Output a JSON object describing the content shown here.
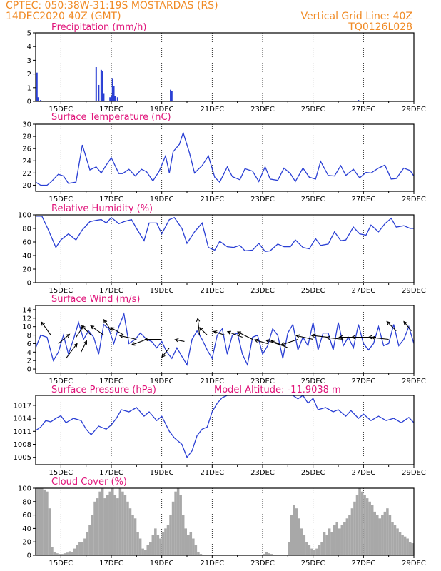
{
  "header": {
    "line1_left": "CPTEC:   050:38W-31:19S   MOSTARDAS (RS)",
    "line2_left": "14DEC2020 40Z (GMT)",
    "line1_right": "Vertical Grid Line: 40Z",
    "line2_right": "TQ0126L028"
  },
  "colors": {
    "header": "#f08a24",
    "panel_title": "#e0147a",
    "line": "#2a3fd4",
    "cloud_bar": "#a8a8a8",
    "axis": "#000000",
    "wind_arrow": "#000000"
  },
  "chart_data": [
    {
      "type": "bar",
      "title": "Precipitation (mm/h)",
      "x_ticks": [
        "15DEC",
        "17DEC",
        "19DEC",
        "21DEC",
        "23DEC",
        "25DEC",
        "27DEC",
        "29DEC"
      ],
      "xlim_days": [
        14.0,
        29.0
      ],
      "ylim": [
        0,
        5
      ],
      "y_ticks": [
        "0",
        "1",
        "2",
        "3",
        "4",
        "5"
      ],
      "x": [
        14.05,
        14.1,
        14.2,
        16.4,
        16.5,
        16.6,
        16.65,
        16.7,
        16.95,
        17.0,
        17.05,
        17.1,
        17.15,
        17.25,
        19.35,
        19.4,
        26.8,
        28.4
      ],
      "values": [
        2.1,
        0.3,
        0.1,
        2.5,
        1.2,
        2.3,
        2.2,
        0.6,
        0.3,
        0.4,
        1.7,
        1.1,
        0.4,
        0.3,
        0.85,
        0.75,
        0.1,
        0.05
      ]
    },
    {
      "type": "line",
      "title": "Surface Temperature (nC)",
      "x_ticks": [
        "15DEC",
        "17DEC",
        "19DEC",
        "21DEC",
        "23DEC",
        "25DEC",
        "27DEC",
        "29DEC"
      ],
      "xlim_days": [
        14.0,
        29.0
      ],
      "ylim": [
        19,
        30
      ],
      "y_ticks": [
        "20",
        "22",
        "24",
        "26",
        "28",
        "30"
      ],
      "x": [
        14.0,
        14.2,
        14.45,
        14.6,
        14.9,
        15.1,
        15.3,
        15.6,
        15.85,
        16.15,
        16.4,
        16.6,
        16.8,
        17.0,
        17.3,
        17.45,
        17.7,
        17.95,
        18.2,
        18.4,
        18.65,
        18.9,
        19.15,
        19.3,
        19.45,
        19.7,
        19.85,
        20.1,
        20.3,
        20.6,
        20.85,
        21.1,
        21.3,
        21.6,
        21.8,
        22.1,
        22.3,
        22.6,
        22.85,
        23.1,
        23.3,
        23.6,
        23.85,
        24.1,
        24.3,
        24.6,
        24.85,
        25.1,
        25.3,
        25.6,
        25.85,
        26.1,
        26.3,
        26.6,
        26.85,
        27.1,
        27.3,
        27.6,
        27.85,
        28.1,
        28.3,
        28.6,
        28.85,
        29.0
      ],
      "values": [
        20.5,
        20.0,
        20.0,
        20.5,
        21.8,
        21.5,
        20.3,
        20.5,
        26.6,
        22.5,
        23.0,
        22.0,
        23.3,
        24.5,
        21.9,
        21.9,
        22.6,
        21.5,
        22.6,
        22.2,
        20.7,
        22.3,
        24.8,
        22.0,
        25.5,
        26.7,
        28.6,
        25.3,
        22.0,
        23.2,
        24.8,
        21.3,
        20.5,
        23.0,
        21.4,
        20.9,
        22.7,
        22.3,
        20.6,
        23.0,
        21.0,
        20.8,
        22.8,
        21.9,
        20.6,
        22.8,
        21.3,
        21.0,
        23.9,
        21.6,
        21.5,
        23.2,
        21.6,
        22.6,
        21.2,
        22.1,
        22.0,
        22.8,
        23.3,
        21.0,
        21.1,
        22.8,
        22.4,
        21.5
      ]
    },
    {
      "type": "line",
      "title": "Relative Humidity (%)",
      "x_ticks": [
        "15DEC",
        "17DEC",
        "19DEC",
        "21DEC",
        "23DEC",
        "25DEC",
        "27DEC",
        "29DEC"
      ],
      "xlim_days": [
        14.0,
        29.0
      ],
      "ylim": [
        0,
        100
      ],
      "y_ticks": [
        "0",
        "20",
        "40",
        "60",
        "80",
        "100"
      ],
      "x": [
        14.0,
        14.25,
        14.5,
        14.8,
        15.0,
        15.3,
        15.6,
        15.85,
        16.15,
        16.4,
        16.6,
        16.8,
        17.0,
        17.3,
        17.5,
        17.8,
        18.0,
        18.3,
        18.5,
        18.8,
        19.0,
        19.3,
        19.5,
        19.8,
        20.0,
        20.3,
        20.6,
        20.85,
        21.1,
        21.3,
        21.6,
        21.85,
        22.1,
        22.3,
        22.6,
        22.85,
        23.1,
        23.3,
        23.6,
        23.85,
        24.1,
        24.3,
        24.6,
        24.85,
        25.1,
        25.3,
        25.6,
        25.85,
        26.1,
        26.3,
        26.6,
        26.85,
        27.1,
        27.3,
        27.6,
        27.85,
        28.1,
        28.3,
        28.6,
        28.85,
        29.0
      ],
      "values": [
        98,
        98,
        78,
        52,
        63,
        72,
        63,
        78,
        90,
        92,
        93,
        88,
        96,
        87,
        90,
        93,
        80,
        62,
        88,
        88,
        72,
        93,
        96,
        80,
        58,
        75,
        88,
        52,
        48,
        61,
        53,
        52,
        55,
        47,
        48,
        58,
        46,
        47,
        57,
        53,
        53,
        63,
        52,
        50,
        65,
        55,
        57,
        75,
        62,
        63,
        82,
        72,
        70,
        85,
        75,
        87,
        95,
        82,
        84,
        80,
        80
      ]
    },
    {
      "type": "line",
      "title": "Surface Wind (m/s)",
      "x_ticks": [
        "15DEC",
        "17DEC",
        "19DEC",
        "21DEC",
        "23DEC",
        "25DEC",
        "27DEC",
        "29DEC"
      ],
      "xlim_days": [
        14.0,
        29.0
      ],
      "ylim": [
        -1,
        15
      ],
      "y_ticks": [
        "0",
        "2",
        "4",
        "6",
        "8",
        "10",
        "12",
        "14"
      ],
      "x": [
        14.0,
        14.2,
        14.45,
        14.7,
        14.9,
        15.1,
        15.3,
        15.5,
        15.7,
        15.9,
        16.1,
        16.3,
        16.5,
        16.7,
        16.9,
        17.1,
        17.3,
        17.5,
        17.7,
        17.95,
        18.15,
        18.4,
        18.6,
        18.8,
        19.0,
        19.2,
        19.4,
        19.6,
        19.8,
        20.0,
        20.2,
        20.4,
        20.6,
        20.8,
        21.0,
        21.2,
        21.4,
        21.6,
        21.8,
        22.0,
        22.2,
        22.4,
        22.6,
        22.8,
        23.0,
        23.2,
        23.4,
        23.6,
        23.8,
        24.0,
        24.2,
        24.4,
        24.6,
        24.8,
        25.0,
        25.2,
        25.4,
        25.6,
        25.8,
        26.0,
        26.2,
        26.4,
        26.6,
        26.8,
        27.0,
        27.2,
        27.4,
        27.6,
        27.8,
        28.0,
        28.2,
        28.4,
        28.6,
        28.8,
        29.0
      ],
      "values": [
        5.0,
        8.0,
        7.5,
        2.0,
        4.0,
        8.0,
        3.5,
        7.0,
        11.0,
        7.0,
        9.0,
        7.5,
        3.5,
        10.5,
        9.5,
        6.0,
        10.0,
        13.0,
        6.0,
        7.0,
        8.5,
        7.0,
        6.5,
        5.0,
        6.5,
        4.0,
        2.5,
        5.0,
        3.0,
        1.0,
        7.0,
        9.0,
        7.0,
        4.5,
        2.5,
        8.0,
        9.5,
        3.5,
        8.0,
        8.5,
        3.5,
        1.0,
        7.5,
        8.0,
        3.5,
        5.5,
        9.5,
        8.0,
        2.5,
        8.5,
        10.5,
        4.5,
        7.5,
        5.5,
        11.0,
        4.5,
        8.5,
        8.5,
        4.5,
        11.0,
        5.5,
        7.5,
        5.0,
        10.5,
        6.0,
        4.5,
        6.0,
        10.0,
        5.5,
        6.0,
        10.5,
        5.5,
        7.0,
        10.0,
        6.0
      ],
      "wind_vectors": [
        {
          "x": 14.6,
          "y": 8.0,
          "u": -0.5,
          "v": 0.7
        },
        {
          "x": 14.9,
          "y": 6.0,
          "u": 0.6,
          "v": 0.5
        },
        {
          "x": 15.2,
          "y": 2.5,
          "u": 0.6,
          "v": 0.8
        },
        {
          "x": 15.6,
          "y": 7.5,
          "u": 0.4,
          "v": 0.6
        },
        {
          "x": 15.8,
          "y": 4.0,
          "u": 0.3,
          "v": 0.6
        },
        {
          "x": 16.2,
          "y": 8.0,
          "u": -0.5,
          "v": 0.5
        },
        {
          "x": 16.7,
          "y": 8.0,
          "u": -0.7,
          "v": 0.5
        },
        {
          "x": 17.0,
          "y": 9.0,
          "u": -0.4,
          "v": 0.6
        },
        {
          "x": 17.5,
          "y": 8.0,
          "u": -0.7,
          "v": 0.4
        },
        {
          "x": 18.0,
          "y": 7.0,
          "u": -0.9,
          "v": 0.2
        },
        {
          "x": 18.4,
          "y": 7.0,
          "u": -0.8,
          "v": -0.3
        },
        {
          "x": 19.0,
          "y": 7.0,
          "u": -0.9,
          "v": 0.0
        },
        {
          "x": 19.3,
          "y": 5.0,
          "u": -0.4,
          "v": -0.5
        },
        {
          "x": 19.9,
          "y": 6.5,
          "u": -0.5,
          "v": 0.1
        },
        {
          "x": 20.5,
          "y": 8.0,
          "u": -0.1,
          "v": 0.9
        },
        {
          "x": 20.8,
          "y": 8.0,
          "u": -0.4,
          "v": 0.4
        },
        {
          "x": 21.5,
          "y": 8.0,
          "u": -0.6,
          "v": 0.2
        },
        {
          "x": 22.2,
          "y": 7.5,
          "u": -0.8,
          "v": 0.3
        },
        {
          "x": 22.6,
          "y": 7.0,
          "u": -0.8,
          "v": 0.4
        },
        {
          "x": 23.2,
          "y": 6.0,
          "u": -0.7,
          "v": 0.2
        },
        {
          "x": 23.8,
          "y": 5.5,
          "u": -0.9,
          "v": 0.3
        },
        {
          "x": 24.0,
          "y": 5.0,
          "u": -0.9,
          "v": 0.4
        },
        {
          "x": 24.4,
          "y": 7.0,
          "u": -0.9,
          "v": -0.3
        },
        {
          "x": 25.0,
          "y": 7.0,
          "u": -0.9,
          "v": 0.2
        },
        {
          "x": 25.6,
          "y": 7.5,
          "u": -0.9,
          "v": 0.1
        },
        {
          "x": 26.2,
          "y": 7.0,
          "u": -0.9,
          "v": 0.1
        },
        {
          "x": 26.7,
          "y": 7.5,
          "u": -0.9,
          "v": 0.0
        },
        {
          "x": 27.2,
          "y": 7.5,
          "u": -0.9,
          "v": 0.0
        },
        {
          "x": 27.5,
          "y": 7.5,
          "u": -0.4,
          "v": 0.0
        },
        {
          "x": 28.0,
          "y": 7.0,
          "u": -0.9,
          "v": 0.1
        },
        {
          "x": 28.3,
          "y": 9.0,
          "u": -0.5,
          "v": 0.5
        },
        {
          "x": 28.9,
          "y": 9.0,
          "u": -0.4,
          "v": 0.5
        }
      ]
    },
    {
      "type": "line",
      "title": "Surface Pressure (hPa)",
      "annotation": "Model Altitude: -11.9038 m",
      "x_ticks": [
        "15DEC",
        "17DEC",
        "19DEC",
        "21DEC",
        "23DEC",
        "25DEC",
        "27DEC",
        "29DEC"
      ],
      "xlim_days": [
        14.0,
        29.0
      ],
      "ylim": [
        1003.3,
        1019.3
      ],
      "y_ticks": [
        "1005",
        "1008",
        "1011",
        "1014",
        "1017"
      ],
      "x": [
        14.0,
        14.2,
        14.4,
        14.6,
        14.8,
        15.0,
        15.2,
        15.5,
        15.8,
        16.0,
        16.2,
        16.5,
        16.8,
        17.0,
        17.2,
        17.4,
        17.7,
        18.0,
        18.3,
        18.5,
        18.8,
        19.0,
        19.3,
        19.5,
        19.8,
        20.0,
        20.2,
        20.4,
        20.6,
        20.8,
        21.0,
        21.2,
        21.4,
        21.6,
        21.8,
        22.0,
        24.2,
        24.4,
        24.6,
        24.8,
        25.0,
        25.2,
        25.5,
        25.8,
        26.0,
        26.3,
        26.5,
        26.8,
        27.0,
        27.3,
        27.6,
        27.9,
        28.2,
        28.5,
        28.8,
        29.0
      ],
      "values": [
        1011.2,
        1012.0,
        1013.5,
        1013.2,
        1014.0,
        1014.6,
        1013.0,
        1014.0,
        1013.5,
        1011.5,
        1010.2,
        1012.2,
        1011.5,
        1012.5,
        1014.0,
        1016.0,
        1015.5,
        1016.5,
        1014.5,
        1015.5,
        1013.5,
        1014.5,
        1011.0,
        1009.5,
        1008.0,
        1005.0,
        1006.5,
        1010.0,
        1011.5,
        1012.0,
        1015.5,
        1017.5,
        1018.8,
        1019.3,
        1019.3,
        1019.3,
        1019.3,
        1018.5,
        1019.3,
        1017.5,
        1018.6,
        1016.0,
        1016.5,
        1015.5,
        1016.0,
        1014.5,
        1015.8,
        1014.0,
        1015.0,
        1013.5,
        1014.5,
        1013.5,
        1014.0,
        1013.0,
        1014.2,
        1013.0
      ]
    },
    {
      "type": "bar",
      "title": "Cloud Cover (%)",
      "x_ticks": [
        "15DEC",
        "17DEC",
        "19DEC",
        "21DEC",
        "23DEC",
        "25DEC",
        "27DEC",
        "29DEC"
      ],
      "xlim_days": [
        14.0,
        29.0
      ],
      "ylim": [
        0,
        100
      ],
      "y_ticks": [
        "0",
        "20",
        "40",
        "60",
        "80",
        "100"
      ],
      "x": [
        14.0,
        14.1,
        14.2,
        14.3,
        14.4,
        14.5,
        14.6,
        14.7,
        14.8,
        14.9,
        15.0,
        15.1,
        15.2,
        15.3,
        15.4,
        15.5,
        15.6,
        15.7,
        15.8,
        15.9,
        16.0,
        16.1,
        16.2,
        16.3,
        16.4,
        16.5,
        16.6,
        16.7,
        16.8,
        16.9,
        17.0,
        17.1,
        17.2,
        17.3,
        17.4,
        17.5,
        17.6,
        17.7,
        17.8,
        17.9,
        18.0,
        18.1,
        18.2,
        18.3,
        18.4,
        18.5,
        18.6,
        18.7,
        18.8,
        18.9,
        19.0,
        19.1,
        19.2,
        19.3,
        19.4,
        19.5,
        19.6,
        19.7,
        19.8,
        19.9,
        20.0,
        20.1,
        20.2,
        20.3,
        20.4,
        20.5,
        20.6,
        20.7,
        20.8,
        20.9,
        21.0,
        21.1,
        21.2,
        21.3,
        21.4,
        21.5,
        21.6,
        21.7,
        21.8,
        21.9,
        22.0,
        22.1,
        22.2,
        22.3,
        22.4,
        22.5,
        22.6,
        22.7,
        22.8,
        22.9,
        23.0,
        23.1,
        23.2,
        23.3,
        23.4,
        23.5,
        23.6,
        23.7,
        23.8,
        23.9,
        24.0,
        24.1,
        24.2,
        24.3,
        24.4,
        24.5,
        24.6,
        24.7,
        24.8,
        24.9,
        25.0,
        25.1,
        25.2,
        25.3,
        25.4,
        25.5,
        25.6,
        25.7,
        25.8,
        25.9,
        26.0,
        26.1,
        26.2,
        26.3,
        26.4,
        26.5,
        26.6,
        26.7,
        26.8,
        26.9,
        27.0,
        27.1,
        27.2,
        27.3,
        27.4,
        27.5,
        27.6,
        27.7,
        27.8,
        27.9,
        28.0,
        28.1,
        28.2,
        28.3,
        28.4,
        28.5,
        28.6,
        28.7,
        28.8,
        28.9
      ],
      "values": [
        100,
        100,
        100,
        98,
        95,
        70,
        12,
        5,
        3,
        2,
        2,
        3,
        4,
        6,
        5,
        10,
        15,
        20,
        20,
        25,
        35,
        45,
        60,
        80,
        85,
        95,
        100,
        85,
        90,
        95,
        100,
        90,
        85,
        100,
        95,
        90,
        80,
        70,
        60,
        55,
        35,
        25,
        10,
        8,
        15,
        20,
        30,
        40,
        30,
        25,
        35,
        40,
        45,
        60,
        80,
        95,
        100,
        90,
        60,
        40,
        30,
        35,
        25,
        15,
        5,
        2,
        1,
        1,
        1,
        0,
        0,
        0,
        0,
        0,
        0,
        0,
        0,
        0,
        0,
        0,
        0,
        0,
        0,
        0,
        0,
        0,
        0,
        0,
        0,
        1,
        2,
        5,
        3,
        2,
        1,
        1,
        0,
        0,
        0,
        0,
        20,
        60,
        75,
        70,
        55,
        40,
        30,
        20,
        15,
        10,
        8,
        10,
        15,
        20,
        35,
        30,
        40,
        35,
        45,
        50,
        40,
        45,
        50,
        55,
        60,
        70,
        80,
        90,
        100,
        95,
        90,
        85,
        80,
        75,
        65,
        60,
        55,
        60,
        65,
        70,
        60,
        50,
        45,
        40,
        35,
        30,
        28,
        25,
        20,
        18
      ]
    }
  ]
}
